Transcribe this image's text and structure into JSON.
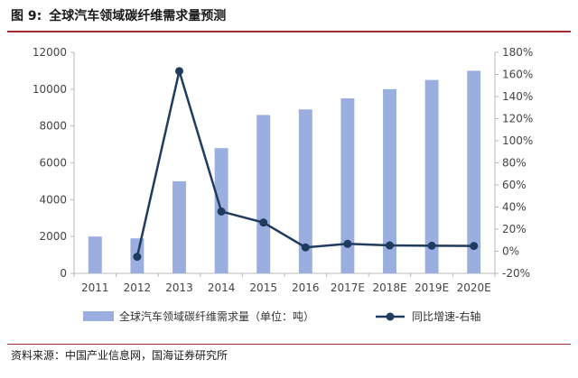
{
  "figure": {
    "label": "图 9:",
    "title": "全球汽车领域碳纤维需求量预测"
  },
  "source": "资料来源：中国产业信息网，国海证券研究所",
  "chart_data": {
    "type": "bar+line",
    "title": "全球汽车领域碳纤维需求量预测",
    "categories": [
      "2011",
      "2012",
      "2013",
      "2014",
      "2015",
      "2016",
      "2017E",
      "2018E",
      "2019E",
      "2020E"
    ],
    "series": [
      {
        "name": "全球汽车领域碳纤维需求量（单位：吨）",
        "type": "bar",
        "axis": "left",
        "color": "#9aaee0",
        "values": [
          2000,
          1900,
          5000,
          6800,
          8600,
          8900,
          9500,
          10000,
          10500,
          11000
        ]
      },
      {
        "name": "同比增速-右轴",
        "type": "line",
        "axis": "right",
        "color": "#1f3b5e",
        "values": [
          null,
          -5,
          163,
          36,
          26,
          3.5,
          6.7,
          5.3,
          5,
          4.8
        ]
      }
    ],
    "y_left": {
      "min": 0,
      "max": 12000,
      "ticks": [
        "0",
        "2000",
        "4000",
        "6000",
        "8000",
        "10000",
        "12000"
      ]
    },
    "y_right": {
      "min": -20,
      "max": 180,
      "ticks": [
        "-20%",
        "0%",
        "20%",
        "40%",
        "60%",
        "80%",
        "100%",
        "120%",
        "140%",
        "160%",
        "180%"
      ]
    },
    "legend_position": "bottom",
    "grid": false
  }
}
